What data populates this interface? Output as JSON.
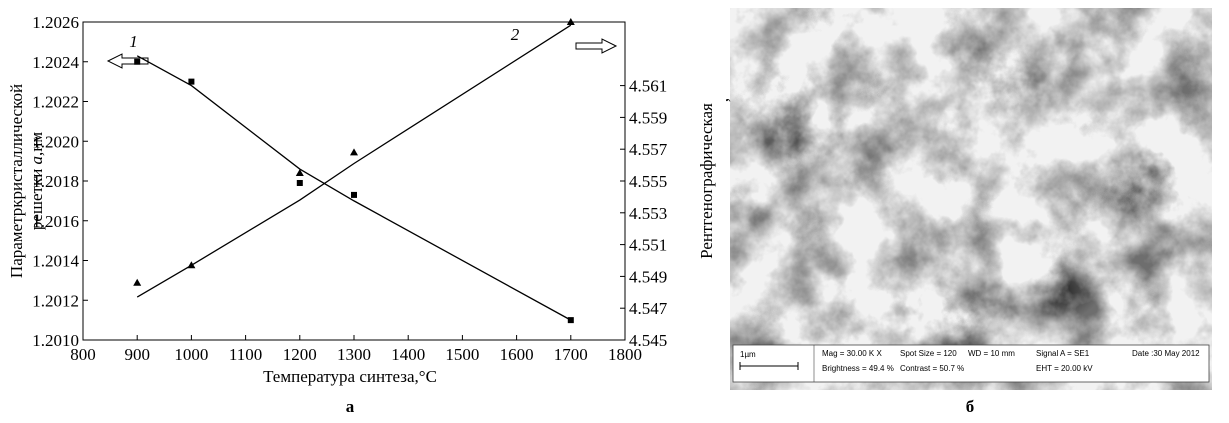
{
  "chart_data": {
    "type": "scatter",
    "xlabel": "Температура синтеза,°С",
    "ylabel": [
      "Параметркристаллической",
      "решетки ",
      "a",
      ",нм"
    ],
    "y2label": [
      "Рентгенографическая",
      ","
    ],
    "xlim": [
      800,
      1800
    ],
    "xticks": [
      800,
      900,
      1000,
      1100,
      1200,
      1300,
      1400,
      1500,
      1600,
      1700,
      1800
    ],
    "ylim": [
      1.201,
      1.2026
    ],
    "yticks": [
      {
        "value": 1.201,
        "label": "1.2010"
      },
      {
        "value": 1.2012,
        "label": "1.2012"
      },
      {
        "value": 1.2014,
        "label": "1.2014"
      },
      {
        "value": 1.2016,
        "label": "1.2016"
      },
      {
        "value": 1.2018,
        "label": "1.2018"
      },
      {
        "value": 1.202,
        "label": "1.2020"
      },
      {
        "value": 1.2022,
        "label": "1.2022"
      },
      {
        "value": 1.2024,
        "label": "1.2024"
      },
      {
        "value": 1.2026,
        "label": "1.2026"
      }
    ],
    "y2lim": [
      4.545,
      4.565
    ],
    "y2ticks": [
      4.545,
      4.547,
      4.549,
      4.551,
      4.553,
      4.555,
      4.557,
      4.559,
      4.561
    ],
    "series": [
      {
        "name": "1",
        "marker": "square",
        "color": "#000000",
        "x": [
          900,
          1000,
          1200,
          1300,
          1700
        ],
        "values": [
          1.2024,
          1.2023,
          1.20179,
          1.20173,
          1.2011
        ],
        "fit": [
          1.20243,
          1.20228,
          1.20186,
          1.2017,
          1.2011
        ]
      },
      {
        "name": "2",
        "marker": "triangle",
        "color": "#000000",
        "axis": "y2",
        "x": [
          900,
          1000,
          1200,
          1300,
          1700
        ],
        "values": [
          4.5486,
          4.5497,
          4.5555,
          4.5568,
          4.565
        ],
        "fit": [
          4.5477,
          4.5497,
          4.5538,
          4.5561,
          4.5648
        ]
      }
    ],
    "panel_label": "а"
  },
  "image": {
    "panel_label": "б",
    "info": {
      "scale": "1µm",
      "mag": "Mag = 30.00 K X",
      "spot": "Spot Size = 120",
      "wd": "WD =   10 mm",
      "signal": "Signal A = SE1",
      "date": "Date :30 May 2012",
      "brightness": "Brightness = 49.4 %",
      "contrast": "Contrast = 50.7 %",
      "eht": "EHT = 20.00 kV"
    }
  }
}
